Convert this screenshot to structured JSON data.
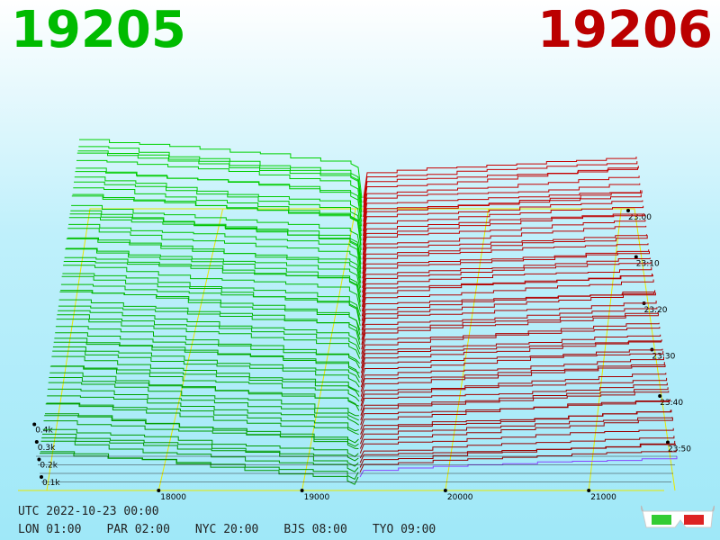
{
  "left_label": "19205",
  "right_label": "19206",
  "colors": {
    "left": "#00bb00",
    "right": "#bb0000",
    "grid": "#e8e800"
  },
  "footer": {
    "utc": "UTC 2022-10-23 00:00",
    "cities": [
      "LON 01:00",
      "PAR 02:00",
      "NYC 20:00",
      "BJS 08:00",
      "TYO 09:00"
    ]
  },
  "glasses_icon": "3d-glasses-icon",
  "chart_data": {
    "type": "area",
    "title": "",
    "xlabel": "",
    "ylabel": "",
    "price_ticks": [
      18000,
      19000,
      20000,
      21000
    ],
    "price_range": [
      17000,
      21100
    ],
    "depth_ticks": [
      "0.1k",
      "0.2k",
      "0.3k",
      "0.4k"
    ],
    "time_ticks": [
      "23:00",
      "23:10",
      "23:20",
      "23:30",
      "23:40",
      "23:50"
    ],
    "series": [
      {
        "name": "19205",
        "side": "bid"
      },
      {
        "name": "19206",
        "side": "ask"
      }
    ],
    "snapshots": 60,
    "mid_price": 19205.5
  }
}
